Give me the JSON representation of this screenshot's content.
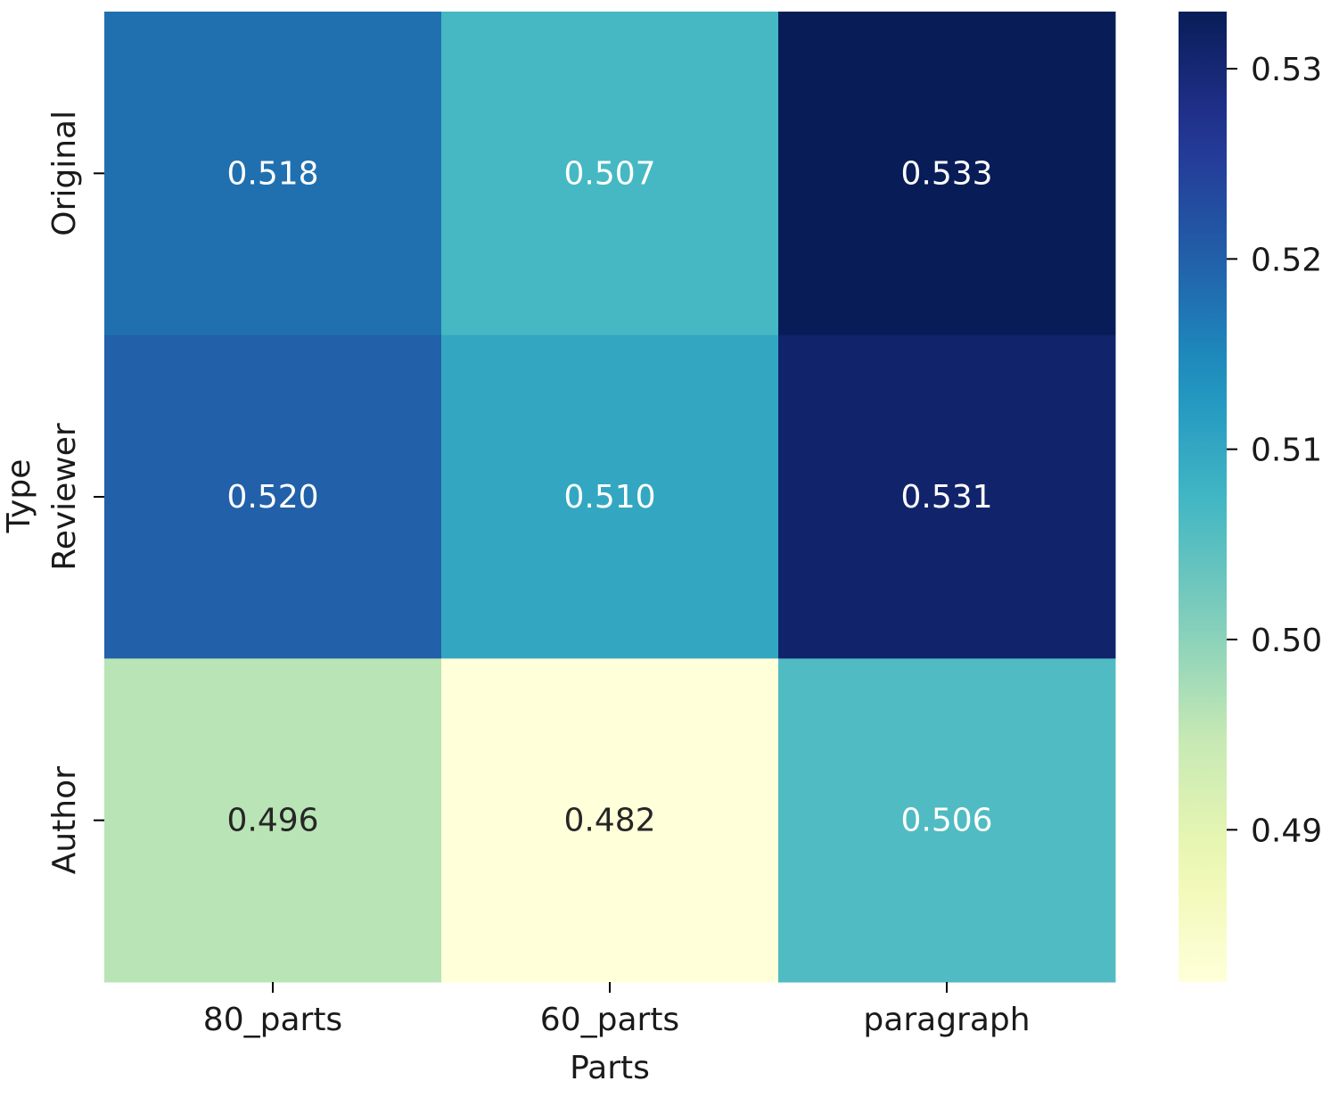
{
  "chart_data": {
    "type": "heatmap",
    "title": "",
    "xlabel": "Parts",
    "ylabel": "Type",
    "x_categories": [
      "80_parts",
      "60_parts",
      "paragraph"
    ],
    "y_categories": [
      "Original",
      "Reviewer",
      "Author"
    ],
    "values": [
      [
        0.518,
        0.507,
        0.533
      ],
      [
        0.52,
        0.51,
        0.531
      ],
      [
        0.496,
        0.482,
        0.506
      ]
    ],
    "value_labels": [
      [
        "0.518",
        "0.507",
        "0.533"
      ],
      [
        "0.520",
        "0.510",
        "0.531"
      ],
      [
        "0.496",
        "0.482",
        "0.506"
      ]
    ],
    "colormap": "YlGnBu",
    "vmin": 0.482,
    "vmax": 0.533,
    "colorbar": {
      "ticks": [
        0.49,
        0.5,
        0.51,
        0.52,
        0.53
      ],
      "tick_labels": [
        "0.49",
        "0.50",
        "0.51",
        "0.52",
        "0.53"
      ]
    },
    "legend_placement": "right",
    "grid": false
  },
  "colors": {
    "text_light": "#ffffff",
    "text_dark": "#262626",
    "axis": "#000000"
  }
}
